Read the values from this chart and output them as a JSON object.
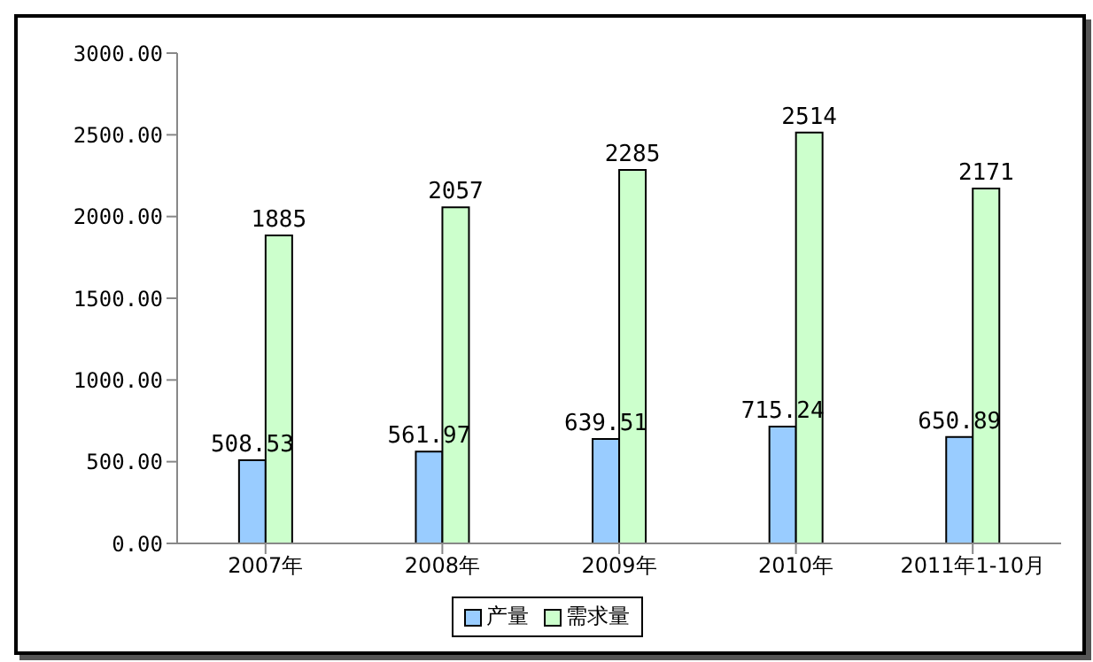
{
  "chart_data": {
    "type": "bar",
    "categories": [
      "2007年",
      "2008年",
      "2009年",
      "2010年",
      "2011年1-10月"
    ],
    "series": [
      {
        "name": "产量",
        "color": "#99ccff",
        "values": [
          508.53,
          561.97,
          639.51,
          715.24,
          650.89
        ]
      },
      {
        "name": "需求量",
        "color": "#ccffcc",
        "values": [
          1885,
          2057,
          2285,
          2514,
          2171
        ]
      }
    ],
    "ylim": [
      0,
      3000
    ],
    "yticks": [
      {
        "value": 0,
        "label": "0.00"
      },
      {
        "value": 500,
        "label": "500.00"
      },
      {
        "value": 1000,
        "label": "1000.00"
      },
      {
        "value": 1500,
        "label": "1500.00"
      },
      {
        "value": 2000,
        "label": "2000.00"
      },
      {
        "value": 2500,
        "label": "2500.00"
      },
      {
        "value": 3000,
        "label": "3000.00"
      }
    ],
    "grid": false,
    "legend": "bottom",
    "data_labels": true
  }
}
